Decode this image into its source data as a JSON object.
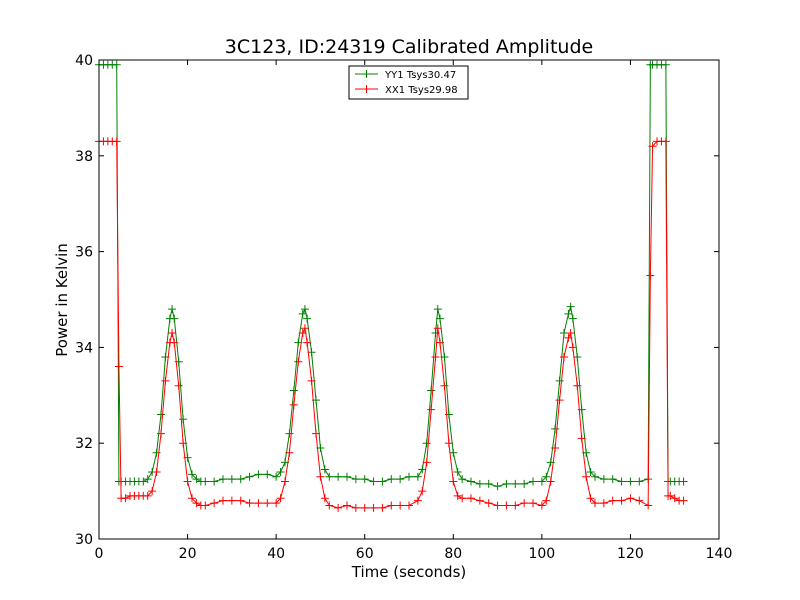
{
  "chart_data": {
    "type": "line",
    "title": "3C123, ID:24319 Calibrated Amplitude",
    "xlabel": "Time (seconds)",
    "ylabel": "Power in Kelvin",
    "xlim": [
      0,
      140
    ],
    "ylim": [
      30,
      40
    ],
    "x_ticks": [
      "0",
      "20",
      "40",
      "60",
      "80",
      "100",
      "120",
      "140"
    ],
    "y_ticks": [
      "30",
      "32",
      "34",
      "36",
      "38",
      "40"
    ],
    "grid": false,
    "legend_placement": "top-center",
    "series": [
      {
        "name": "YY1 Tsys30.47",
        "color": "#008000",
        "marker": "+",
        "points": [
          [
            0,
            39.9
          ],
          [
            1,
            39.9
          ],
          [
            2,
            39.9
          ],
          [
            3,
            39.9
          ],
          [
            4,
            39.9
          ],
          [
            4.5,
            31.2
          ],
          [
            5,
            31.2
          ],
          [
            6,
            31.2
          ],
          [
            7,
            31.2
          ],
          [
            8,
            31.2
          ],
          [
            9,
            31.2
          ],
          [
            10,
            31.2
          ],
          [
            11,
            31.25
          ],
          [
            12,
            31.4
          ],
          [
            13,
            31.8
          ],
          [
            14,
            32.6
          ],
          [
            15,
            33.8
          ],
          [
            16,
            34.6
          ],
          [
            16.5,
            34.8
          ],
          [
            17,
            34.6
          ],
          [
            18,
            33.7
          ],
          [
            19,
            32.5
          ],
          [
            20,
            31.7
          ],
          [
            21,
            31.35
          ],
          [
            22,
            31.25
          ],
          [
            23,
            31.2
          ],
          [
            24,
            31.2
          ],
          [
            26,
            31.2
          ],
          [
            28,
            31.25
          ],
          [
            30,
            31.25
          ],
          [
            32,
            31.25
          ],
          [
            34,
            31.3
          ],
          [
            36,
            31.35
          ],
          [
            38,
            31.35
          ],
          [
            40,
            31.3
          ],
          [
            41,
            31.4
          ],
          [
            42,
            31.6
          ],
          [
            43,
            32.2
          ],
          [
            44,
            33.1
          ],
          [
            45,
            34.1
          ],
          [
            46,
            34.7
          ],
          [
            46.5,
            34.8
          ],
          [
            47,
            34.6
          ],
          [
            48,
            33.9
          ],
          [
            49,
            32.9
          ],
          [
            50,
            31.9
          ],
          [
            51,
            31.45
          ],
          [
            52,
            31.3
          ],
          [
            54,
            31.3
          ],
          [
            56,
            31.3
          ],
          [
            58,
            31.25
          ],
          [
            60,
            31.25
          ],
          [
            62,
            31.2
          ],
          [
            64,
            31.2
          ],
          [
            66,
            31.25
          ],
          [
            68,
            31.25
          ],
          [
            70,
            31.3
          ],
          [
            72,
            31.3
          ],
          [
            73,
            31.45
          ],
          [
            74,
            32.0
          ],
          [
            75,
            33.1
          ],
          [
            76,
            34.3
          ],
          [
            76.5,
            34.8
          ],
          [
            77,
            34.6
          ],
          [
            78,
            33.8
          ],
          [
            79,
            32.6
          ],
          [
            80,
            31.8
          ],
          [
            81,
            31.4
          ],
          [
            82,
            31.25
          ],
          [
            84,
            31.2
          ],
          [
            86,
            31.15
          ],
          [
            88,
            31.15
          ],
          [
            90,
            31.1
          ],
          [
            92,
            31.15
          ],
          [
            94,
            31.15
          ],
          [
            96,
            31.15
          ],
          [
            98,
            31.2
          ],
          [
            100,
            31.2
          ],
          [
            101,
            31.3
          ],
          [
            102,
            31.6
          ],
          [
            103,
            32.3
          ],
          [
            104,
            33.3
          ],
          [
            105,
            34.3
          ],
          [
            106,
            34.7
          ],
          [
            106.5,
            34.85
          ],
          [
            107,
            34.6
          ],
          [
            108,
            33.8
          ],
          [
            109,
            32.7
          ],
          [
            110,
            31.8
          ],
          [
            111,
            31.4
          ],
          [
            112,
            31.3
          ],
          [
            114,
            31.25
          ],
          [
            116,
            31.25
          ],
          [
            118,
            31.2
          ],
          [
            120,
            31.2
          ],
          [
            122,
            31.2
          ],
          [
            124,
            31.25
          ],
          [
            124.5,
            39.9
          ],
          [
            125,
            39.9
          ],
          [
            126,
            39.9
          ],
          [
            127,
            39.9
          ],
          [
            128,
            39.9
          ],
          [
            128.5,
            31.2
          ],
          [
            129,
            31.2
          ],
          [
            130,
            31.2
          ],
          [
            131,
            31.2
          ],
          [
            132,
            31.2
          ]
        ]
      },
      {
        "name": "XX1 Tsys29.98",
        "color": "#ff0000",
        "marker": "+",
        "points": [
          [
            0,
            38.3
          ],
          [
            1,
            38.3
          ],
          [
            2,
            38.3
          ],
          [
            3,
            38.3
          ],
          [
            4,
            38.3
          ],
          [
            4.5,
            33.6
          ],
          [
            5,
            30.85
          ],
          [
            6,
            30.85
          ],
          [
            7,
            30.9
          ],
          [
            8,
            30.9
          ],
          [
            9,
            30.9
          ],
          [
            10,
            30.9
          ],
          [
            11,
            30.9
          ],
          [
            12,
            31.0
          ],
          [
            13,
            31.4
          ],
          [
            14,
            32.2
          ],
          [
            15,
            33.3
          ],
          [
            16,
            34.1
          ],
          [
            16.5,
            34.3
          ],
          [
            17,
            34.1
          ],
          [
            18,
            33.2
          ],
          [
            19,
            32.0
          ],
          [
            20,
            31.2
          ],
          [
            21,
            30.85
          ],
          [
            22,
            30.75
          ],
          [
            23,
            30.7
          ],
          [
            24,
            30.7
          ],
          [
            26,
            30.75
          ],
          [
            28,
            30.8
          ],
          [
            30,
            30.8
          ],
          [
            32,
            30.8
          ],
          [
            34,
            30.75
          ],
          [
            36,
            30.75
          ],
          [
            38,
            30.75
          ],
          [
            40,
            30.75
          ],
          [
            41,
            30.85
          ],
          [
            42,
            31.2
          ],
          [
            43,
            31.8
          ],
          [
            44,
            32.8
          ],
          [
            45,
            33.7
          ],
          [
            46,
            34.3
          ],
          [
            46.5,
            34.4
          ],
          [
            47,
            34.1
          ],
          [
            48,
            33.3
          ],
          [
            49,
            32.2
          ],
          [
            50,
            31.3
          ],
          [
            51,
            30.85
          ],
          [
            52,
            30.7
          ],
          [
            54,
            30.65
          ],
          [
            56,
            30.7
          ],
          [
            58,
            30.65
          ],
          [
            60,
            30.65
          ],
          [
            62,
            30.65
          ],
          [
            64,
            30.65
          ],
          [
            66,
            30.7
          ],
          [
            68,
            30.7
          ],
          [
            70,
            30.7
          ],
          [
            72,
            30.8
          ],
          [
            73,
            31.0
          ],
          [
            74,
            31.6
          ],
          [
            75,
            32.7
          ],
          [
            76,
            33.8
          ],
          [
            76.5,
            34.4
          ],
          [
            77,
            34.1
          ],
          [
            78,
            33.2
          ],
          [
            79,
            32.0
          ],
          [
            80,
            31.2
          ],
          [
            81,
            30.9
          ],
          [
            82,
            30.85
          ],
          [
            84,
            30.85
          ],
          [
            86,
            30.8
          ],
          [
            88,
            30.75
          ],
          [
            90,
            30.7
          ],
          [
            92,
            30.7
          ],
          [
            94,
            30.7
          ],
          [
            96,
            30.75
          ],
          [
            98,
            30.75
          ],
          [
            100,
            30.7
          ],
          [
            101,
            30.8
          ],
          [
            102,
            31.2
          ],
          [
            103,
            31.9
          ],
          [
            104,
            32.9
          ],
          [
            105,
            33.8
          ],
          [
            106,
            34.2
          ],
          [
            106.5,
            34.3
          ],
          [
            107,
            34.0
          ],
          [
            108,
            33.2
          ],
          [
            109,
            32.1
          ],
          [
            110,
            31.3
          ],
          [
            111,
            30.85
          ],
          [
            112,
            30.75
          ],
          [
            114,
            30.75
          ],
          [
            116,
            30.8
          ],
          [
            118,
            30.8
          ],
          [
            120,
            30.85
          ],
          [
            122,
            30.8
          ],
          [
            124,
            30.7
          ],
          [
            124.5,
            35.5
          ],
          [
            125,
            38.2
          ],
          [
            126,
            38.3
          ],
          [
            127,
            38.3
          ],
          [
            128,
            38.3
          ],
          [
            128.5,
            30.9
          ],
          [
            129,
            30.9
          ],
          [
            130,
            30.85
          ],
          [
            131,
            30.8
          ],
          [
            132,
            30.8
          ]
        ]
      }
    ]
  }
}
